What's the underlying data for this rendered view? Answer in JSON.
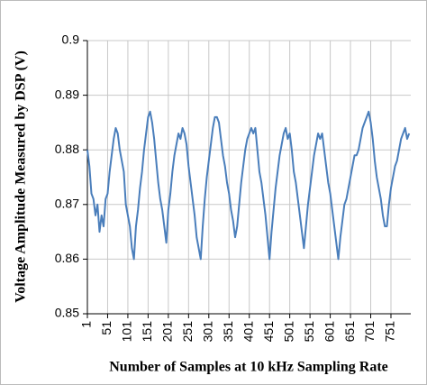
{
  "chart_data": {
    "type": "line",
    "x_label": "Number of Samples at 10 kHz Sampling Rate",
    "y_label": "Voltage Amplitude Measured by DSP (V)",
    "xlim": [
      1,
      800
    ],
    "xticks": [
      1,
      51,
      101,
      151,
      201,
      251,
      301,
      351,
      401,
      451,
      501,
      551,
      601,
      651,
      701,
      751
    ],
    "ylim": [
      0.85,
      0.9
    ],
    "yticks": [
      0.85,
      0.86,
      0.87,
      0.88,
      0.89,
      0.9
    ],
    "grid": true,
    "x": [
      1,
      6,
      11,
      16,
      21,
      26,
      31,
      36,
      41,
      46,
      51,
      56,
      61,
      66,
      71,
      76,
      81,
      86,
      91,
      96,
      101,
      106,
      111,
      116,
      121,
      126,
      131,
      136,
      141,
      146,
      151,
      156,
      161,
      166,
      171,
      176,
      181,
      186,
      191,
      196,
      201,
      206,
      211,
      216,
      221,
      226,
      231,
      236,
      241,
      246,
      251,
      256,
      261,
      266,
      271,
      276,
      281,
      286,
      291,
      296,
      301,
      306,
      311,
      316,
      321,
      326,
      331,
      336,
      341,
      346,
      351,
      356,
      361,
      366,
      371,
      376,
      381,
      386,
      391,
      396,
      401,
      406,
      411,
      416,
      421,
      426,
      431,
      436,
      441,
      446,
      451,
      456,
      461,
      466,
      471,
      476,
      481,
      486,
      491,
      496,
      501,
      506,
      511,
      516,
      521,
      526,
      531,
      536,
      541,
      546,
      551,
      556,
      561,
      566,
      571,
      576,
      581,
      586,
      591,
      596,
      601,
      606,
      611,
      616,
      621,
      626,
      631,
      636,
      641,
      646,
      651,
      656,
      661,
      666,
      671,
      676,
      681,
      686,
      691,
      696,
      701,
      706,
      711,
      716,
      721,
      726,
      731,
      736,
      741,
      746,
      751,
      756,
      761,
      766,
      771,
      776,
      781,
      786,
      791,
      796
    ],
    "series": [
      {
        "color": "#4a7ebb",
        "values": [
          0.88,
          0.877,
          0.872,
          0.871,
          0.868,
          0.87,
          0.865,
          0.868,
          0.866,
          0.871,
          0.872,
          0.876,
          0.879,
          0.882,
          0.884,
          0.883,
          0.88,
          0.878,
          0.876,
          0.87,
          0.868,
          0.866,
          0.862,
          0.86,
          0.866,
          0.869,
          0.873,
          0.876,
          0.88,
          0.883,
          0.886,
          0.887,
          0.885,
          0.882,
          0.878,
          0.874,
          0.871,
          0.869,
          0.866,
          0.863,
          0.869,
          0.872,
          0.876,
          0.879,
          0.881,
          0.883,
          0.882,
          0.884,
          0.883,
          0.881,
          0.877,
          0.874,
          0.871,
          0.868,
          0.864,
          0.862,
          0.86,
          0.866,
          0.871,
          0.875,
          0.878,
          0.881,
          0.884,
          0.886,
          0.886,
          0.885,
          0.882,
          0.879,
          0.877,
          0.874,
          0.872,
          0.869,
          0.867,
          0.864,
          0.866,
          0.87,
          0.874,
          0.877,
          0.88,
          0.882,
          0.883,
          0.884,
          0.883,
          0.884,
          0.88,
          0.876,
          0.874,
          0.871,
          0.868,
          0.864,
          0.86,
          0.865,
          0.869,
          0.873,
          0.876,
          0.879,
          0.881,
          0.883,
          0.884,
          0.882,
          0.883,
          0.88,
          0.876,
          0.874,
          0.871,
          0.868,
          0.865,
          0.862,
          0.866,
          0.87,
          0.873,
          0.876,
          0.879,
          0.881,
          0.883,
          0.882,
          0.883,
          0.88,
          0.877,
          0.874,
          0.872,
          0.869,
          0.866,
          0.863,
          0.86,
          0.864,
          0.867,
          0.87,
          0.871,
          0.873,
          0.875,
          0.877,
          0.879,
          0.879,
          0.88,
          0.882,
          0.884,
          0.885,
          0.886,
          0.887,
          0.885,
          0.882,
          0.878,
          0.875,
          0.873,
          0.871,
          0.868,
          0.866,
          0.866,
          0.87,
          0.873,
          0.875,
          0.877,
          0.878,
          0.88,
          0.882,
          0.883,
          0.884,
          0.882,
          0.883
        ]
      }
    ]
  }
}
